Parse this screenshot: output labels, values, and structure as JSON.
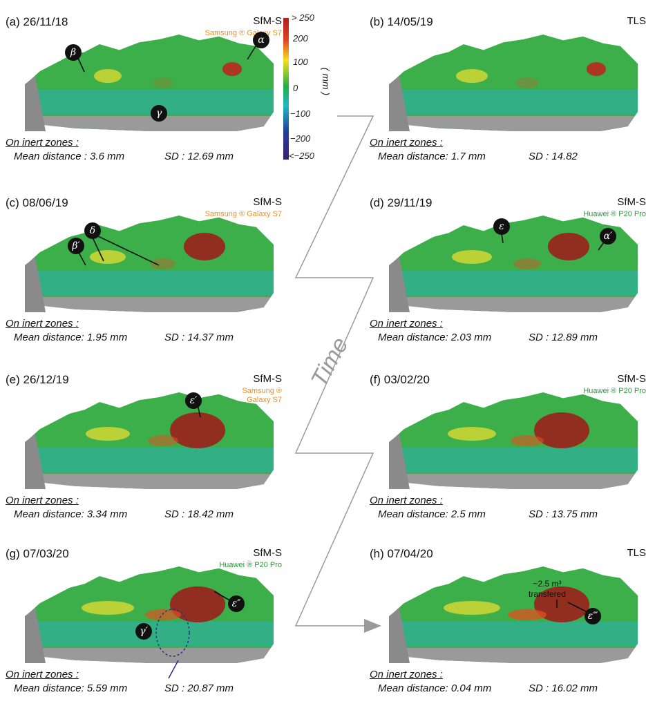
{
  "panels": [
    {
      "label": "(a) 26/11/18",
      "method": "SfM-S",
      "device": "Samsung ® Galaxy S7",
      "device_color": "#e8902a",
      "stats_title": "On inert zones :",
      "mean": "Mean distance : 3.6 mm",
      "sd": "SD : 12.69 mm"
    },
    {
      "label": "(b) 14/05/19",
      "method": "TLS",
      "device": "",
      "device_color": "",
      "stats_title": "On inert zones :",
      "mean": "Mean distance: 1.7 mm",
      "sd": "SD : 14.82"
    },
    {
      "label": "(c) 08/06/19",
      "method": "SfM-S",
      "device": "Samsung ® Galaxy S7",
      "device_color": "#e8902a",
      "stats_title": "On inert zones :",
      "mean": "Mean distance: 1.95 mm",
      "sd": "SD : 14.37 mm"
    },
    {
      "label": "(d) 29/11/19",
      "method": "SfM-S",
      "device": "Huawei ® P20 Pro",
      "device_color": "#2a9a3a",
      "stats_title": "On inert zones :",
      "mean": "Mean distance: 2.03 mm",
      "sd": "SD : 12.89 mm"
    },
    {
      "label": "(e) 26/12/19",
      "method": "SfM-S",
      "device": "Samsung ®\nGalaxy S7",
      "device_color": "#e8902a",
      "stats_title": "On inert zones :",
      "mean": "Mean distance: 3.34 mm",
      "sd": "SD : 18.42 mm"
    },
    {
      "label": "(f) 03/02/20",
      "method": "SfM-S",
      "device": "Huawei ® P20 Pro",
      "device_color": "#2a9a3a",
      "stats_title": "On inert zones :",
      "mean": "Mean distance: 2.5 mm",
      "sd": "SD : 13.75 mm"
    },
    {
      "label": "(g) 07/03/20",
      "method": "SfM-S",
      "device": "Huawei ® P20 Pro",
      "device_color": "#2a9a3a",
      "stats_title": "On inert zones :",
      "mean": "Mean distance: 5.59 mm",
      "sd": "SD : 20.87 mm"
    },
    {
      "label": "(h) 07/04/20",
      "method": "TLS",
      "device": "",
      "device_color": "",
      "stats_title": "On inert zones :",
      "mean": "Mean distance: 0.04 mm",
      "sd": "SD : 16.02 mm"
    }
  ],
  "colorbar": {
    "ticks": [
      "> 250",
      "200",
      "100",
      "0",
      "−100",
      "−200",
      "<−250"
    ],
    "unit": "( mm )"
  },
  "time_label": "Time",
  "annotations": {
    "alpha": "α",
    "beta": "β",
    "gamma": "γ",
    "delta": "δ",
    "beta_p": "β′",
    "epsilon": "ε",
    "alpha_p": "α′",
    "epsilon_p": "ε′",
    "epsilon_pp": "ε″",
    "gamma_p": "γ′",
    "epsilon_ppp": "ε‴"
  },
  "transfer_note": "~2.5 m³\ntransfered"
}
